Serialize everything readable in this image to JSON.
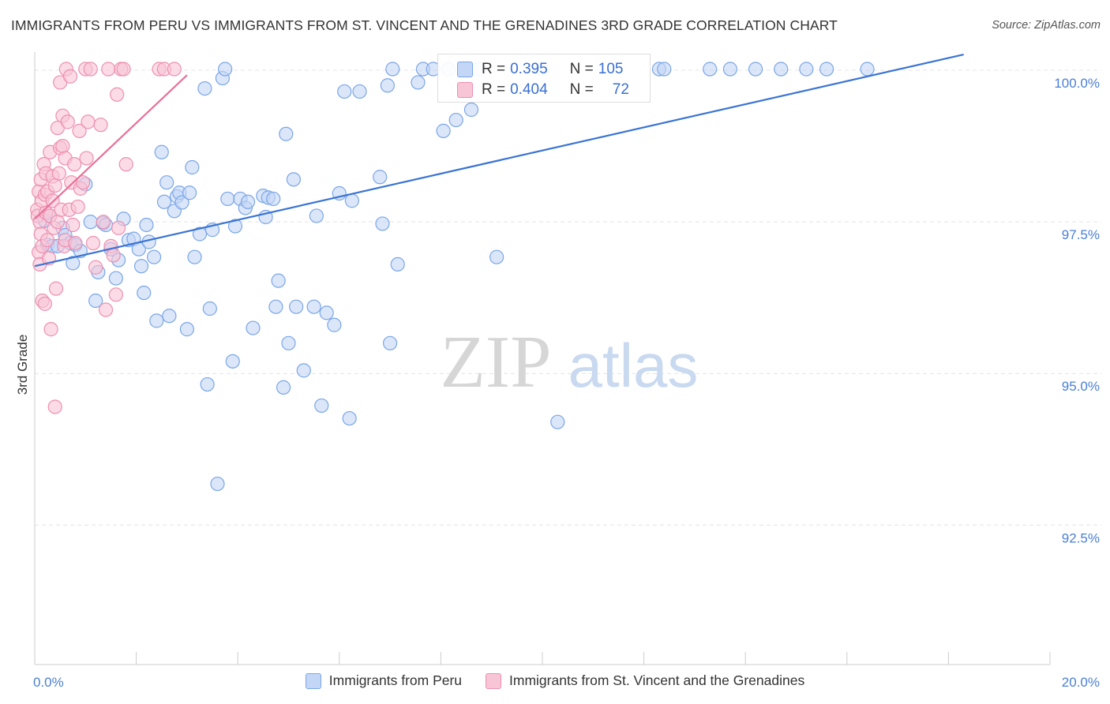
{
  "title": "IMMIGRANTS FROM PERU VS IMMIGRANTS FROM ST. VINCENT AND THE GRENADINES 3RD GRADE CORRELATION CHART",
  "source": "Source: ZipAtlas.com",
  "watermark": {
    "zip": "ZIP",
    "atlas": "atlas"
  },
  "stats": [
    {
      "r_label": "R =",
      "r_value": "0.395",
      "n_label": "N =",
      "n_value": "105",
      "color": "#7aa6e8",
      "fill": "#c3d6f5"
    },
    {
      "r_label": "R =",
      "r_value": "0.404",
      "n_label": "N =",
      "n_value": "72",
      "color": "#ee8fb0",
      "fill": "#f8c5d6"
    }
  ],
  "legend": [
    {
      "label": "Immigrants from Peru",
      "color": "#7aa6e8",
      "fill": "#c3d6f5"
    },
    {
      "label": "Immigrants from St. Vincent and the Grenadines",
      "color": "#ee8fb0",
      "fill": "#f8c5d6"
    }
  ],
  "chart_data": {
    "type": "scatter",
    "title": "IMMIGRANTS FROM PERU VS IMMIGRANTS FROM ST. VINCENT AND THE GRENADINES 3RD GRADE CORRELATION CHART",
    "xlabel": "",
    "ylabel": "3rd Grade",
    "xlim": [
      0,
      20
    ],
    "ylim": [
      90.2,
      100.3
    ],
    "x_ticks": [
      0,
      2,
      4,
      6,
      8,
      10,
      12,
      14,
      16,
      18,
      20
    ],
    "x_tick_labels": {
      "0": "0.0%",
      "20": "20.0%"
    },
    "y_ticks": [
      92.5,
      95.0,
      97.5,
      100.0
    ],
    "y_tick_labels": [
      "92.5%",
      "95.0%",
      "97.5%",
      "100.0%"
    ],
    "grid": true,
    "legend_position": "bottom",
    "series": [
      {
        "name": "Immigrants from Peru",
        "color": "#3a74d4",
        "marker_fill": "#c3d6f5",
        "marker_stroke": "#7aa6e8",
        "trend": {
          "x": [
            0.0,
            18.3
          ],
          "y": [
            96.77,
            100.26
          ]
        },
        "points": [
          [
            0.2,
            97.52
          ],
          [
            0.25,
            97.12
          ],
          [
            0.3,
            97.6
          ],
          [
            0.35,
            97.1
          ],
          [
            0.45,
            97.1
          ],
          [
            0.55,
            97.4
          ],
          [
            0.6,
            97.28
          ],
          [
            0.7,
            97.15
          ],
          [
            0.75,
            96.82
          ],
          [
            0.8,
            97.12
          ],
          [
            0.9,
            97.02
          ],
          [
            1.0,
            98.12
          ],
          [
            1.1,
            97.5
          ],
          [
            1.2,
            96.2
          ],
          [
            1.25,
            96.67
          ],
          [
            1.35,
            97.48
          ],
          [
            1.4,
            97.45
          ],
          [
            1.5,
            97.05
          ],
          [
            1.6,
            96.57
          ],
          [
            1.65,
            96.87
          ],
          [
            1.75,
            97.55
          ],
          [
            1.85,
            97.2
          ],
          [
            1.95,
            97.22
          ],
          [
            2.05,
            97.05
          ],
          [
            2.1,
            96.77
          ],
          [
            2.15,
            96.33
          ],
          [
            2.2,
            97.45
          ],
          [
            2.25,
            97.17
          ],
          [
            2.35,
            96.92
          ],
          [
            2.4,
            95.87
          ],
          [
            2.5,
            98.65
          ],
          [
            2.55,
            97.83
          ],
          [
            2.6,
            98.15
          ],
          [
            2.65,
            95.95
          ],
          [
            2.75,
            97.68
          ],
          [
            2.8,
            97.92
          ],
          [
            2.85,
            97.98
          ],
          [
            2.9,
            97.82
          ],
          [
            3.0,
            95.73
          ],
          [
            3.05,
            97.98
          ],
          [
            3.1,
            98.4
          ],
          [
            3.15,
            96.92
          ],
          [
            3.25,
            97.3
          ],
          [
            3.35,
            99.7
          ],
          [
            3.4,
            94.82
          ],
          [
            3.45,
            96.07
          ],
          [
            3.5,
            97.37
          ],
          [
            3.6,
            93.18
          ],
          [
            3.7,
            99.87
          ],
          [
            3.75,
            100.02
          ],
          [
            3.8,
            97.88
          ],
          [
            3.9,
            95.2
          ],
          [
            3.95,
            97.43
          ],
          [
            4.05,
            97.88
          ],
          [
            4.15,
            97.73
          ],
          [
            4.2,
            97.83
          ],
          [
            4.3,
            95.75
          ],
          [
            4.5,
            97.93
          ],
          [
            4.55,
            97.58
          ],
          [
            4.6,
            97.9
          ],
          [
            4.7,
            97.88
          ],
          [
            4.75,
            96.1
          ],
          [
            4.8,
            96.53
          ],
          [
            4.9,
            94.77
          ],
          [
            4.95,
            98.95
          ],
          [
            5.0,
            95.5
          ],
          [
            5.1,
            98.2
          ],
          [
            5.15,
            96.1
          ],
          [
            5.3,
            95.05
          ],
          [
            5.5,
            96.1
          ],
          [
            5.55,
            97.6
          ],
          [
            5.65,
            94.47
          ],
          [
            5.75,
            96.0
          ],
          [
            5.9,
            95.8
          ],
          [
            6.0,
            97.97
          ],
          [
            6.1,
            99.65
          ],
          [
            6.2,
            94.26
          ],
          [
            6.25,
            97.85
          ],
          [
            6.4,
            99.65
          ],
          [
            6.8,
            98.24
          ],
          [
            6.85,
            97.47
          ],
          [
            6.95,
            99.75
          ],
          [
            7.0,
            95.5
          ],
          [
            7.05,
            100.02
          ],
          [
            7.15,
            96.8
          ],
          [
            7.55,
            99.8
          ],
          [
            7.65,
            100.02
          ],
          [
            7.85,
            100.02
          ],
          [
            8.05,
            99.0
          ],
          [
            8.15,
            100.02
          ],
          [
            8.3,
            99.18
          ],
          [
            8.6,
            99.35
          ],
          [
            8.75,
            100.02
          ],
          [
            9.1,
            96.92
          ],
          [
            10.0,
            100.02
          ],
          [
            10.3,
            94.2
          ],
          [
            12.3,
            100.02
          ],
          [
            12.4,
            100.02
          ],
          [
            13.3,
            100.02
          ],
          [
            13.7,
            100.02
          ],
          [
            14.2,
            100.02
          ],
          [
            14.7,
            100.02
          ],
          [
            15.2,
            100.02
          ],
          [
            15.6,
            100.02
          ],
          [
            16.4,
            100.02
          ]
        ]
      },
      {
        "name": "Immigrants from St. Vincent and the Grenadines",
        "color": "#e8709a",
        "marker_fill": "#f8c5d6",
        "marker_stroke": "#ee8fb0",
        "trend": {
          "x": [
            0.0,
            3.0
          ],
          "y": [
            97.55,
            99.92
          ]
        },
        "points": [
          [
            0.05,
            97.7
          ],
          [
            0.06,
            97.6
          ],
          [
            0.08,
            98.0
          ],
          [
            0.08,
            97.0
          ],
          [
            0.1,
            97.5
          ],
          [
            0.1,
            96.8
          ],
          [
            0.12,
            98.2
          ],
          [
            0.12,
            97.3
          ],
          [
            0.14,
            97.85
          ],
          [
            0.15,
            97.1
          ],
          [
            0.15,
            96.2
          ],
          [
            0.18,
            98.45
          ],
          [
            0.2,
            97.95
          ],
          [
            0.2,
            96.15
          ],
          [
            0.22,
            98.3
          ],
          [
            0.22,
            97.65
          ],
          [
            0.25,
            98.0
          ],
          [
            0.25,
            97.2
          ],
          [
            0.28,
            96.9
          ],
          [
            0.3,
            98.65
          ],
          [
            0.3,
            97.6
          ],
          [
            0.32,
            95.73
          ],
          [
            0.35,
            98.25
          ],
          [
            0.35,
            97.85
          ],
          [
            0.38,
            97.4
          ],
          [
            0.4,
            94.45
          ],
          [
            0.4,
            98.1
          ],
          [
            0.42,
            96.4
          ],
          [
            0.45,
            99.05
          ],
          [
            0.45,
            97.5
          ],
          [
            0.48,
            98.3
          ],
          [
            0.5,
            99.8
          ],
          [
            0.5,
            98.72
          ],
          [
            0.52,
            97.7
          ],
          [
            0.55,
            99.25
          ],
          [
            0.55,
            98.75
          ],
          [
            0.58,
            97.1
          ],
          [
            0.6,
            98.55
          ],
          [
            0.6,
            97.2
          ],
          [
            0.62,
            100.02
          ],
          [
            0.65,
            99.15
          ],
          [
            0.68,
            97.7
          ],
          [
            0.7,
            99.9
          ],
          [
            0.72,
            98.15
          ],
          [
            0.75,
            97.45
          ],
          [
            0.78,
            98.45
          ],
          [
            0.8,
            97.15
          ],
          [
            0.85,
            97.75
          ],
          [
            0.88,
            99.0
          ],
          [
            0.9,
            98.05
          ],
          [
            0.95,
            98.15
          ],
          [
            1.0,
            100.02
          ],
          [
            1.02,
            98.55
          ],
          [
            1.05,
            99.15
          ],
          [
            1.1,
            100.02
          ],
          [
            1.15,
            97.15
          ],
          [
            1.2,
            96.75
          ],
          [
            1.3,
            99.1
          ],
          [
            1.35,
            97.5
          ],
          [
            1.4,
            96.05
          ],
          [
            1.45,
            100.02
          ],
          [
            1.5,
            97.1
          ],
          [
            1.55,
            96.95
          ],
          [
            1.6,
            96.3
          ],
          [
            1.62,
            99.6
          ],
          [
            1.65,
            97.4
          ],
          [
            1.7,
            100.02
          ],
          [
            1.75,
            100.02
          ],
          [
            1.8,
            98.45
          ],
          [
            2.45,
            100.02
          ],
          [
            2.55,
            100.02
          ],
          [
            2.75,
            100.02
          ]
        ]
      }
    ]
  }
}
